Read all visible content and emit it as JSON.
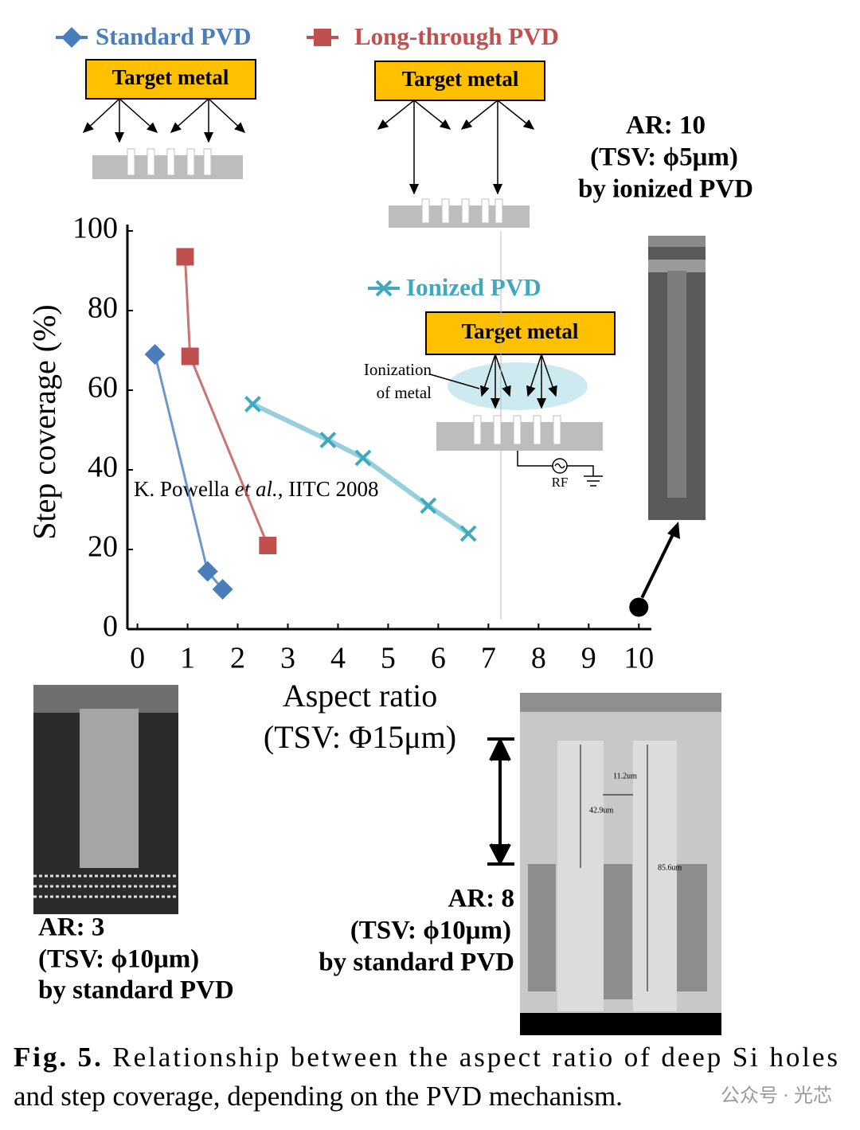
{
  "chart_data": {
    "type": "line",
    "ylabel": "Step coverage (%)",
    "xlabel": [
      "Aspect ratio",
      "(TSV: Φ15μm)"
    ],
    "xlim": [
      -0.2,
      10.25
    ],
    "ylim": [
      0,
      100
    ],
    "xticks": [
      0,
      1,
      2,
      3,
      4,
      5,
      6,
      7,
      8,
      9,
      10
    ],
    "yticks": [
      0,
      20,
      40,
      60,
      80,
      100
    ],
    "series": [
      {
        "name": "Standard PVD",
        "color": "#4a7ebb",
        "marker": "diamond",
        "x": [
          0.35,
          1.4,
          1.7
        ],
        "values": [
          69,
          14.5,
          10
        ]
      },
      {
        "name": "Long-through PVD",
        "color": "#c0504d",
        "marker": "square",
        "x": [
          0.95,
          1.05,
          2.6
        ],
        "values": [
          93.5,
          68.5,
          21
        ]
      },
      {
        "name": "Ionized PVD",
        "color": "#3fa9c0",
        "marker": "x",
        "x": [
          2.3,
          3.8,
          4.5,
          5.8,
          6.6
        ],
        "values": [
          56.5,
          47.5,
          43,
          31,
          24
        ]
      }
    ],
    "point": {
      "x": 10,
      "y": 5.5,
      "color": "#000000"
    },
    "citation": [
      "K. Powella ",
      "et al.",
      ", IITC 2008"
    ]
  },
  "diagrams": {
    "target": [
      "Target metal",
      "Target metal",
      "Target metal"
    ],
    "ionization": [
      "Ionization",
      "of metal"
    ],
    "rf": "RF"
  },
  "samples": [
    [
      "AR: 10",
      "(TSV: ϕ5μm)",
      "by ionized PVD"
    ],
    [
      "AR: 3",
      "(TSV: ϕ10μm)",
      "by standard PVD"
    ],
    [
      "AR: 8",
      "(TSV: ϕ10μm)",
      "by standard PVD"
    ]
  ],
  "measurements": [
    "11.2um",
    "42.9um",
    "85.6um"
  ],
  "caption": {
    "label": "Fig. 5.",
    "lines": [
      "Relationship between the aspect ratio of deep Si holes",
      "and step coverage, depending on the PVD mechanism."
    ]
  },
  "watermark": "公众号 · 光芯"
}
